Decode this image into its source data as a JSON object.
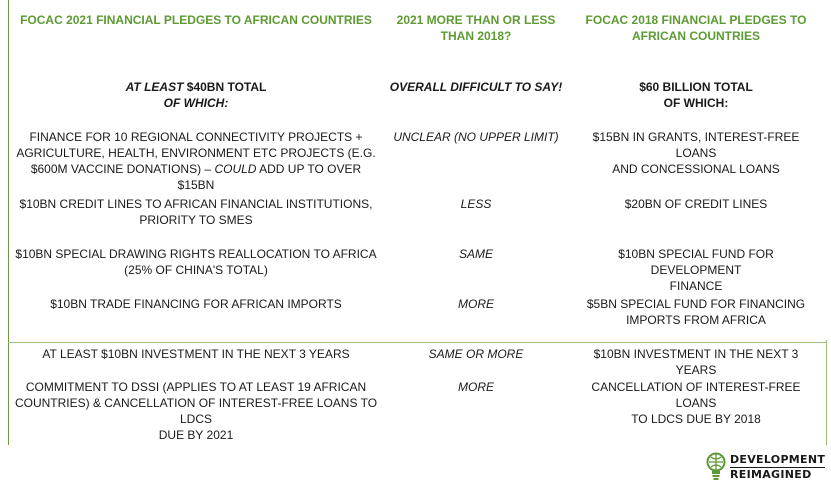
{
  "headers": {
    "col1": "FOCAC 2021 FINANCIAL PLEDGES TO AFRICAN COUNTRIES",
    "col2_line1": "2021 MORE THAN OR LESS",
    "col2_line2": "THAN 2018?",
    "col3_line1": "FOCAC 2018 FINANCIAL PLEDGES TO",
    "col3_line2": "AFRICAN COUNTRIES"
  },
  "totals": {
    "col1_italic": "AT LEAST ",
    "col1_rest": "$40BN TOTAL",
    "col1_line2": "OF WHICH:",
    "col2": "OVERALL DIFFICULT TO SAY!",
    "col3_line1": "$60 BILLION TOTAL",
    "col3_line2": "OF WHICH:"
  },
  "rows": [
    {
      "c1_l1": "FINANCE FOR 10 REGIONAL CONNECTIVITY PROJECTS +",
      "c1_l2": "AGRICULTURE, HEALTH, ENVIRONMENT ETC PROJECTS (E.G.",
      "c1_l3_a": "$600M VACCINE DONATIONS) – ",
      "c1_l3_b": "COULD",
      "c1_l3_c": " ADD UP TO OVER $15BN",
      "c2": "UNCLEAR (NO UPPER LIMIT)",
      "c3_l1": "$15BN IN GRANTS, INTEREST-FREE LOANS",
      "c3_l2": "AND CONCESSIONAL LOANS"
    },
    {
      "c1_l1": "$10BN CREDIT LINES TO AFRICAN FINANCIAL INSTITUTIONS,",
      "c1_l2": "PRIORITY TO SMES",
      "c2": "LESS",
      "c3_l1": "$20BN OF CREDIT LINES"
    },
    {
      "c1_l1": "$10BN SPECIAL DRAWING RIGHTS REALLOCATION TO AFRICA",
      "c1_l2": "(25% OF CHINA'S TOTAL)",
      "c2": "SAME",
      "c3_l1": "$10BN SPECIAL FUND FOR DEVELOPMENT",
      "c3_l2": "FINANCE"
    },
    {
      "c1_l1": "$10BN TRADE FINANCING FOR AFRICAN IMPORTS",
      "c2": "MORE",
      "c3_l1": "$5BN SPECIAL FUND FOR FINANCING",
      "c3_l2": "IMPORTS FROM AFRICA"
    },
    {
      "c1_l1": "AT LEAST $10BN INVESTMENT IN THE NEXT 3 YEARS",
      "c2": "SAME OR MORE",
      "c3_l1": "$10BN INVESTMENT IN THE NEXT 3 YEARS"
    },
    {
      "c1_l1": "COMMITMENT TO DSSI (APPLIES TO AT LEAST 19 AFRICAN",
      "c1_l2": "COUNTRIES) & CANCELLATION OF INTEREST-FREE LOANS TO LDCS",
      "c1_l3": "DUE BY 2021",
      "c2": "MORE",
      "c3_l1": "CANCELLATION OF INTEREST-FREE LOANS",
      "c3_l2": "TO LDCS DUE BY 2018"
    }
  ],
  "logo": {
    "line1": "DEVELOPMENT",
    "line2": "REIMAGINED",
    "icon": "lightbulb-globe-icon",
    "accent": "#5e9a33"
  },
  "colors": {
    "header": "#5e9a33",
    "rule": "#9bbf7c"
  }
}
